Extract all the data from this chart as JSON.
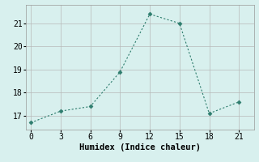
{
  "x": [
    0,
    3,
    6,
    9,
    12,
    15,
    18,
    21
  ],
  "y": [
    16.7,
    17.2,
    17.4,
    18.9,
    21.4,
    21.0,
    17.1,
    17.6
  ],
  "xlabel": "Humidex (Indice chaleur)",
  "xlim": [
    -0.5,
    22.5
  ],
  "ylim": [
    16.4,
    21.8
  ],
  "xticks": [
    0,
    3,
    6,
    9,
    12,
    15,
    18,
    21
  ],
  "yticks": [
    17,
    18,
    19,
    20,
    21
  ],
  "line_color": "#2e7d6e",
  "marker": "D",
  "marker_size": 2.5,
  "bg_color": "#d8f0ee",
  "grid_color": "#b8b8b8",
  "xlabel_fontsize": 7.5,
  "tick_fontsize": 7
}
